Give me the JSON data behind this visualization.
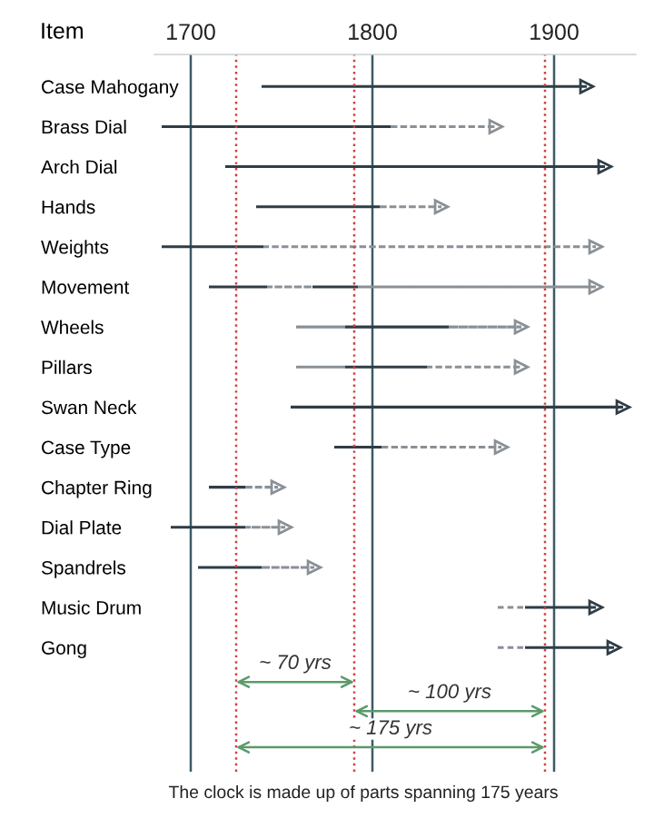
{
  "chart_data": {
    "type": "bar",
    "orientation": "horizontal",
    "ylabel": "Item",
    "categories": [
      "Case Mahogany",
      "Brass Dial",
      "Arch Dial",
      "Hands",
      "Weights",
      "Movement",
      "Wheels",
      "Pillars",
      "Swan Neck",
      "Case Type",
      "Chapter Ring",
      "Dial Plate",
      "Spandrels",
      "Music Drum",
      "Gong"
    ],
    "series": [
      {
        "color": "#8a9096",
        "line_style": "dashed",
        "base": [
          null,
          null,
          null,
          null,
          null,
          null,
          1758,
          1758,
          null,
          null,
          null,
          null,
          null,
          1869,
          1869
        ],
        "values": [
          null,
          null,
          null,
          null,
          null,
          null,
          27,
          27,
          null,
          null,
          null,
          null,
          null,
          15,
          15
        ]
      },
      {
        "color": "#2f3d46",
        "line_style": "solid",
        "base": [
          1739,
          1684,
          1719,
          1736,
          1684,
          1710,
          1785,
          1785,
          1755,
          1779,
          1710,
          1689,
          1704,
          1884,
          1884
        ],
        "values": [
          179,
          126,
          209,
          68,
          56,
          32,
          57,
          45,
          183,
          26,
          20,
          41,
          35,
          39,
          49
        ]
      },
      {
        "color": "#8a9096",
        "line_style": "dashed",
        "base": [
          null,
          1810,
          null,
          1804,
          1740,
          1742,
          1842,
          1830,
          null,
          1805,
          1730,
          1730,
          1739,
          null,
          null
        ],
        "values": [
          null,
          58,
          null,
          34,
          183,
          25,
          40,
          52,
          null,
          66,
          18,
          22,
          29,
          null,
          null
        ]
      },
      {
        "color": "#2f3d46",
        "line_style": "solid",
        "base": [
          null,
          null,
          null,
          null,
          null,
          1767,
          null,
          null,
          null,
          null,
          null,
          null,
          null,
          null,
          null
        ],
        "values": [
          null,
          null,
          null,
          null,
          null,
          25,
          null,
          null,
          null,
          null,
          null,
          null,
          null,
          null,
          null
        ]
      },
      {
        "color": "#8a9096",
        "line_style": "dashed",
        "base": [
          null,
          null,
          null,
          null,
          null,
          1792,
          null,
          null,
          null,
          null,
          null,
          null,
          null,
          null,
          null
        ],
        "values": [
          null,
          null,
          null,
          null,
          null,
          131,
          null,
          null,
          null,
          null,
          null,
          null,
          null,
          null,
          null
        ]
      }
    ],
    "xlim": [
      1680,
      1945
    ],
    "xticks": [
      1700,
      1800,
      1900
    ],
    "grid": "x",
    "ref_lines": [
      {
        "axis": "x",
        "value": 1725,
        "color": "#d04040",
        "line_style": "dotted"
      },
      {
        "axis": "x",
        "value": 1790,
        "color": "#d04040",
        "line_style": "dotted"
      },
      {
        "axis": "x",
        "value": 1895,
        "color": "#d04040",
        "line_style": "dotted"
      }
    ],
    "annotations": [
      "~ 70 yrs",
      "~ 100 yrs",
      "~ 175 yrs",
      "The clock is made up of parts spanning 175 years"
    ]
  }
}
